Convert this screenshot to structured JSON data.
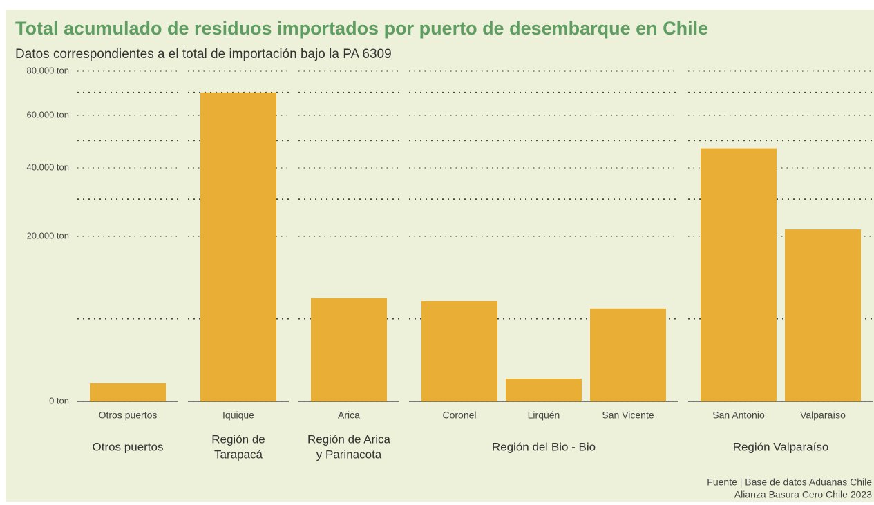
{
  "chart_data": {
    "type": "bar",
    "title": "Total acumulado de residuos importados por puerto de desembarque en Chile",
    "subtitle": "Datos correspondientes a el total de importación bajo la PA 6309",
    "color": "#e8ae35",
    "yscale": "sqrt",
    "ylim": [
      0,
      80000
    ],
    "yticks": [
      {
        "value": 0,
        "label": "0 ton"
      },
      {
        "value": 20000,
        "label": "20.000 ton"
      },
      {
        "value": 40000,
        "label": "40.000 ton"
      },
      {
        "value": 60000,
        "label": "60.000 ton"
      },
      {
        "value": 80000,
        "label": "80.000 ton"
      }
    ],
    "minor_yticks": [
      5000,
      30000,
      50000,
      70000
    ],
    "grid": true,
    "facets": [
      {
        "label": [
          "Otros puertos"
        ],
        "categories": [
          "Otros puertos"
        ],
        "values": [
          240
        ]
      },
      {
        "label": [
          "Región de",
          "Tarapacá"
        ],
        "categories": [
          "Iquique"
        ],
        "values": [
          70000
        ]
      },
      {
        "label": [
          "Región de Arica",
          "y Parinacota"
        ],
        "categories": [
          "Arica"
        ],
        "values": [
          7800
        ]
      },
      {
        "label": [
          "Región del Bio - Bio"
        ],
        "categories": [
          "Coronel",
          "Lirquén",
          "San Vicente"
        ],
        "values": [
          7400,
          380,
          6300
        ]
      },
      {
        "label": [
          "Región Valparaíso"
        ],
        "categories": [
          "San Antonio",
          "Valparaíso"
        ],
        "values": [
          47000,
          21700
        ]
      }
    ],
    "caption": [
      "Fuente | Base de datos Aduanas Chile",
      "Alianza Basura Cero Chile 2023"
    ]
  }
}
